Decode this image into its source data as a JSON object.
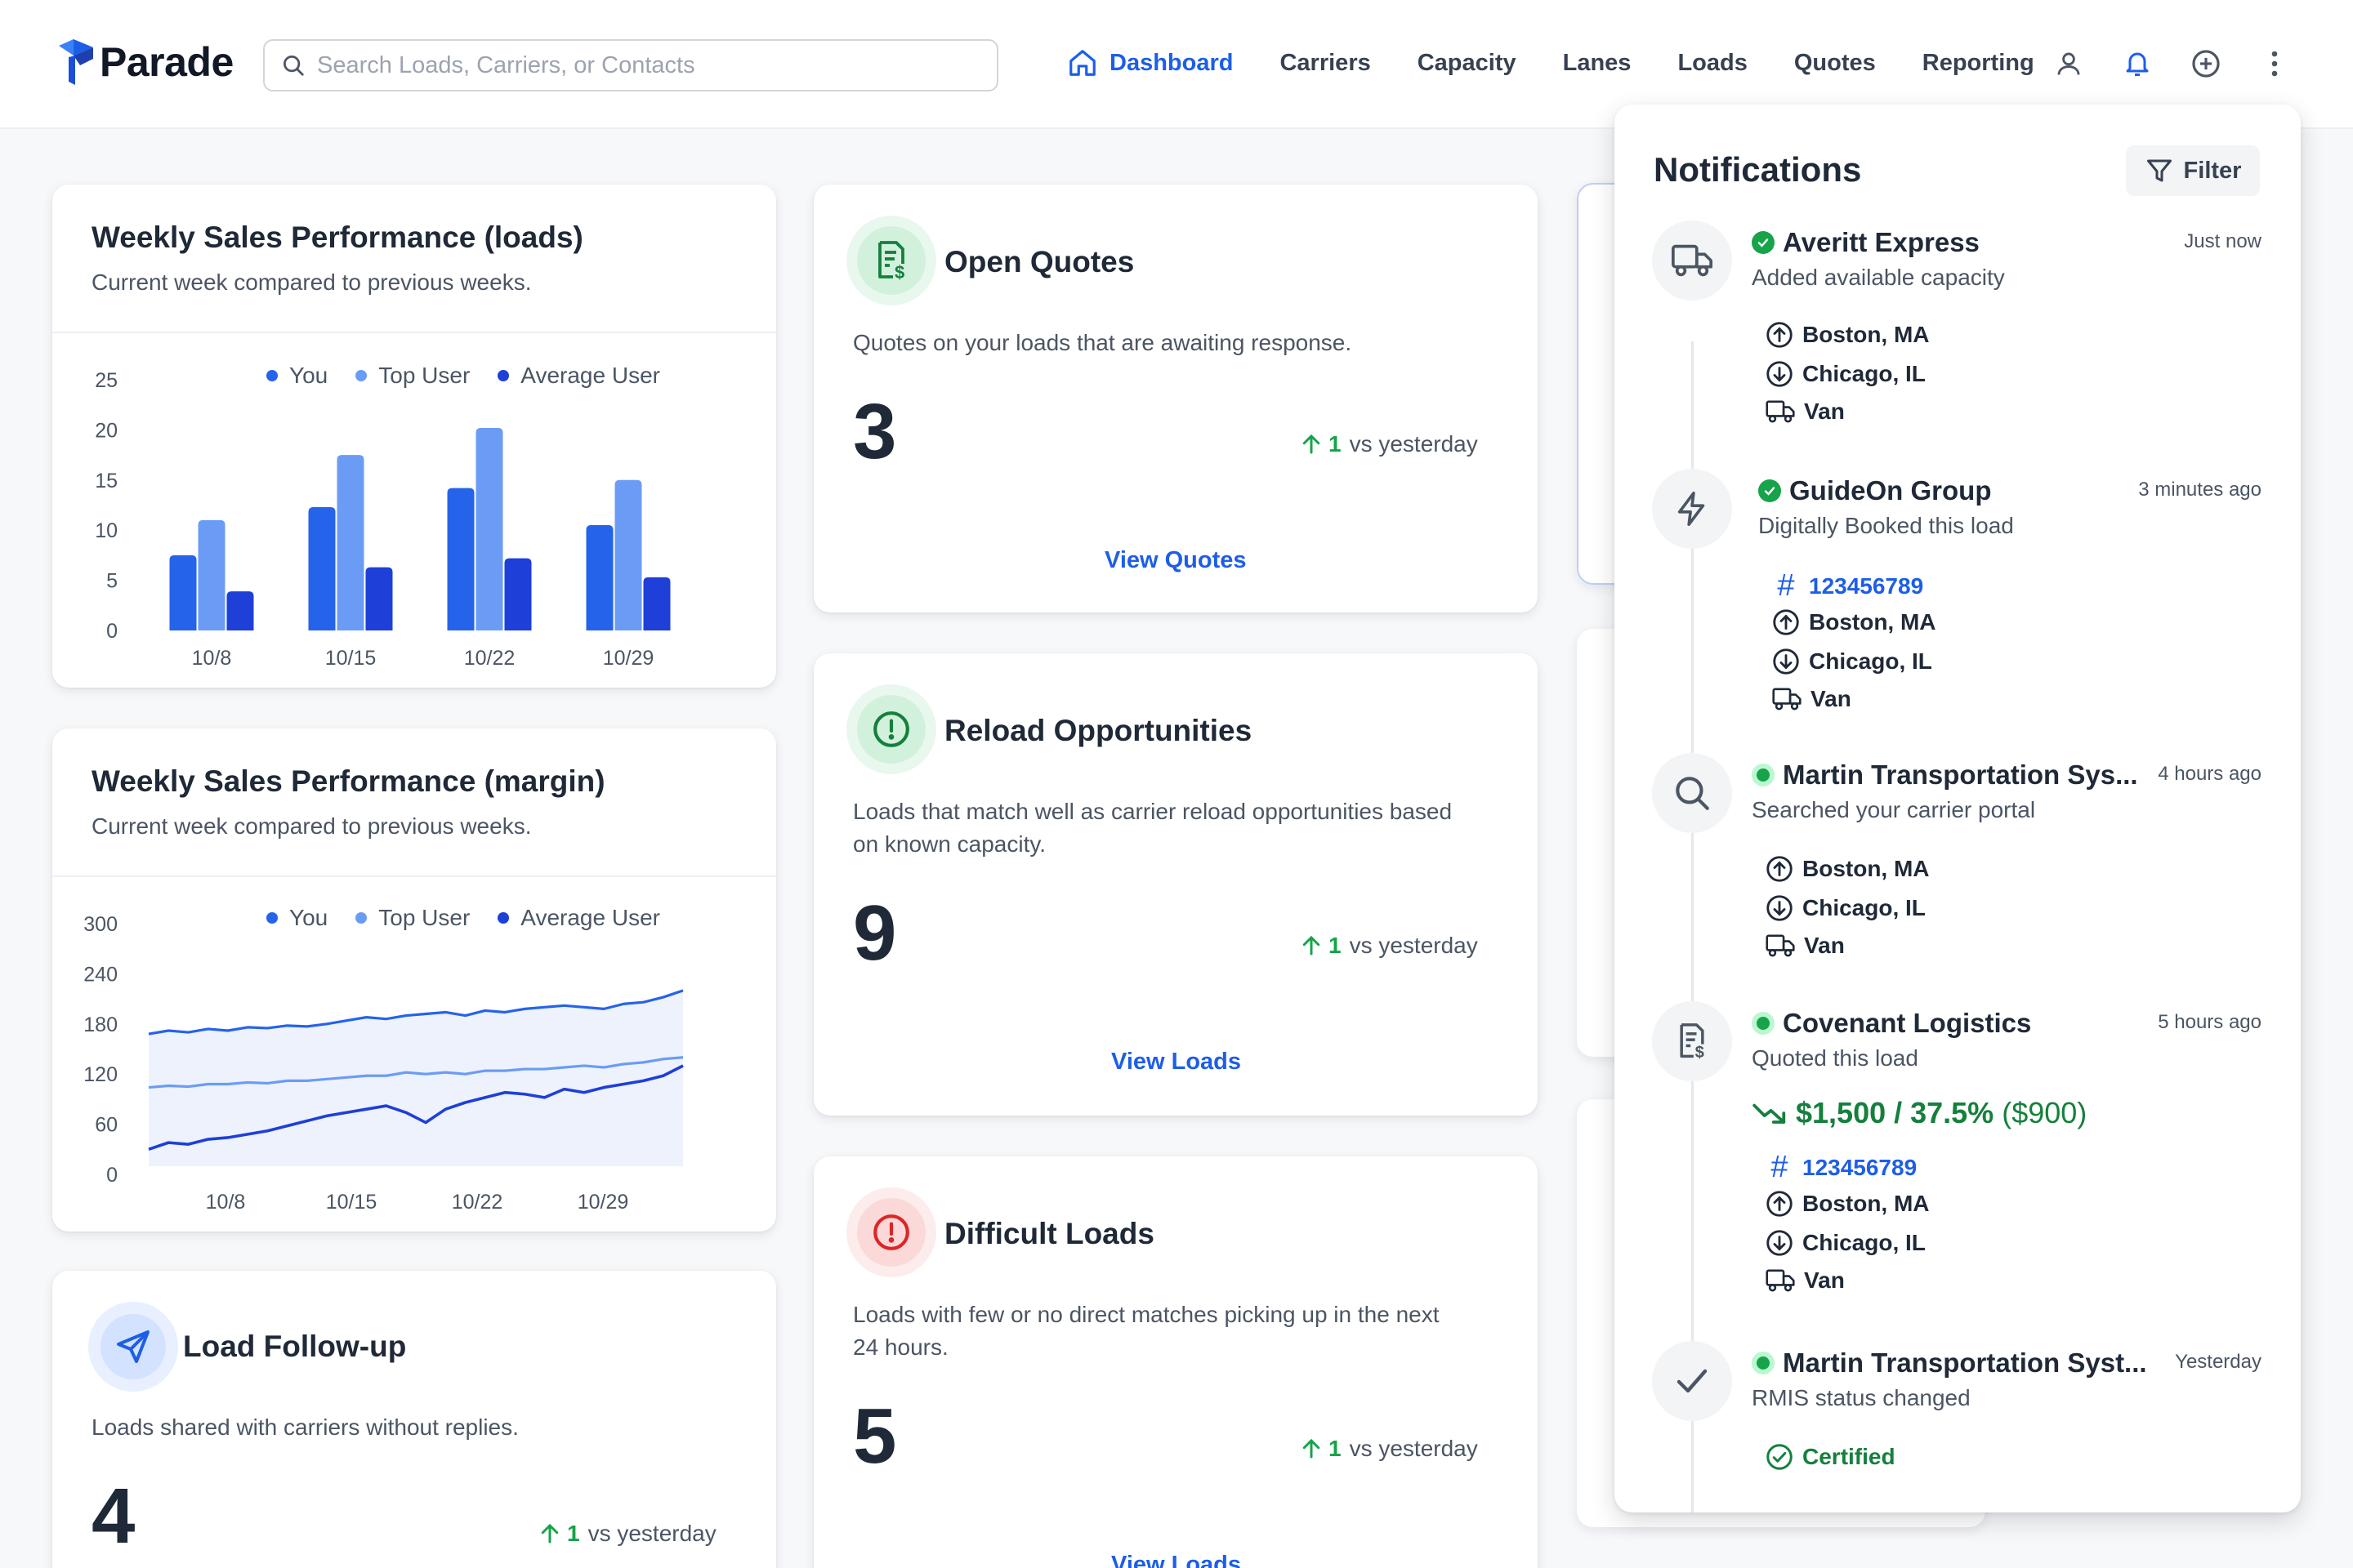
{
  "brand": {
    "name": "Parade"
  },
  "search": {
    "placeholder": "Search Loads, Carriers, or Contacts"
  },
  "nav": [
    {
      "label": "Dashboard",
      "active": true
    },
    {
      "label": "Carriers"
    },
    {
      "label": "Capacity"
    },
    {
      "label": "Lanes"
    },
    {
      "label": "Loads"
    },
    {
      "label": "Quotes"
    },
    {
      "label": "Reporting"
    }
  ],
  "header_icons": [
    "user-icon",
    "bell-icon",
    "plus-circle-icon",
    "more-vertical-icon"
  ],
  "colors": {
    "accent": "#1d5ee8",
    "you": "#2563eb",
    "top_user": "#6b9cf5",
    "average_user": "#1e3fd8",
    "up": "#15a34a"
  },
  "weekly_loads": {
    "title": "Weekly Sales Performance (loads)",
    "subtitle": "Current week compared to previous weeks."
  },
  "weekly_margin": {
    "title": "Weekly Sales Performance (margin)",
    "subtitle": "Current week compared to previous weeks."
  },
  "chart_data": [
    {
      "type": "bar",
      "title": "Weekly Sales Performance (loads)",
      "categories": [
        "10/8",
        "10/15",
        "10/22",
        "10/29"
      ],
      "series": [
        {
          "name": "You",
          "values": [
            7.5,
            12.3,
            14.2,
            10.5
          ]
        },
        {
          "name": "Top User",
          "values": [
            11,
            17.5,
            20.2,
            15
          ]
        },
        {
          "name": "Average User",
          "values": [
            3.9,
            6.3,
            7.2,
            5.3
          ]
        }
      ],
      "yticks": [
        0,
        5,
        10,
        15,
        20,
        25
      ],
      "ylim": [
        0,
        25
      ],
      "legend": "top-center",
      "grid": false
    },
    {
      "type": "line",
      "title": "Weekly Sales Performance (margin)",
      "xticks": [
        "10/8",
        "10/15",
        "10/22",
        "10/29"
      ],
      "x": [
        0,
        1,
        2,
        3,
        4,
        5,
        6,
        7,
        8,
        9,
        10,
        11,
        12,
        13,
        14,
        15,
        16,
        17,
        18,
        19,
        20,
        21,
        22,
        23,
        24,
        25,
        26,
        27
      ],
      "series": [
        {
          "name": "Top User",
          "values": [
            168,
            172,
            170,
            174,
            172,
            176,
            175,
            178,
            177,
            180,
            184,
            188,
            186,
            190,
            192,
            194,
            190,
            196,
            194,
            198,
            200,
            202,
            200,
            198,
            204,
            206,
            212,
            220
          ]
        },
        {
          "name": "You",
          "values": [
            104,
            106,
            105,
            108,
            108,
            110,
            109,
            112,
            112,
            114,
            116,
            118,
            118,
            122,
            120,
            122,
            120,
            124,
            124,
            126,
            126,
            128,
            130,
            128,
            132,
            134,
            138,
            140
          ]
        },
        {
          "name": "Average User",
          "values": [
            30,
            38,
            36,
            42,
            44,
            48,
            52,
            58,
            64,
            70,
            74,
            78,
            82,
            74,
            62,
            78,
            86,
            92,
            98,
            96,
            92,
            102,
            98,
            104,
            108,
            112,
            118,
            130
          ]
        }
      ],
      "yticks": [
        0,
        60,
        120,
        180,
        240,
        300
      ],
      "ylim": [
        0,
        300
      ],
      "legend": "top-center",
      "grid": false
    }
  ],
  "legend": {
    "you": "You",
    "top_user": "Top User",
    "average_user": "Average User"
  },
  "open_quotes": {
    "title": "Open Quotes",
    "description": "Quotes on your loads that are awaiting response.",
    "value": "3",
    "delta": "1",
    "delta_label": "vs yesterday",
    "link": "View Quotes"
  },
  "reload": {
    "title": "Reload Opportunities",
    "description_line1": "Loads that match well as carrier reload opportunities based",
    "description_line2": "on known capacity.",
    "value": "9",
    "delta": "1",
    "delta_label": "vs yesterday",
    "link": "View Loads"
  },
  "difficult": {
    "title": "Difficult Loads",
    "description_line1": "Loads with few or no direct matches picking up in the next",
    "description_line2": "24 hours.",
    "value": "5",
    "delta": "1",
    "delta_label": "vs yesterday",
    "link": "View Loads"
  },
  "followup": {
    "title": "Load Follow-up",
    "description": "Loads shared with carriers without replies.",
    "value": "4",
    "delta": "1",
    "delta_label": "vs yesterday"
  },
  "notifications": {
    "title": "Notifications",
    "filter_label": "Filter",
    "items": [
      {
        "icon": "truck-icon",
        "name": "Averitt Express",
        "time": "Just now",
        "desc": "Added available capacity",
        "origin": "Boston, MA",
        "destination": "Chicago, IL",
        "equipment": "Van"
      },
      {
        "icon": "lightning-icon",
        "name": "GuideOn Group",
        "time": "3 minutes ago",
        "desc": "Digitally Booked this load",
        "load_id": "123456789",
        "origin": "Boston, MA",
        "destination": "Chicago, IL",
        "equipment": "Van"
      },
      {
        "icon": "search-icon",
        "name": "Martin Transportation Sys...",
        "time": "4 hours ago",
        "desc": "Searched your carrier portal",
        "origin": "Boston, MA",
        "destination": "Chicago, IL",
        "equipment": "Van"
      },
      {
        "icon": "quote-icon",
        "name": "Covenant Logistics",
        "time": "5 hours ago",
        "desc": "Quoted this load",
        "price": "$1,500 / 37.5%",
        "price_margin": "($900)",
        "load_id": "123456789",
        "origin": "Boston, MA",
        "destination": "Chicago, IL",
        "equipment": "Van"
      },
      {
        "icon": "check-icon",
        "name": "Martin Transportation Syst...",
        "time": "Yesterday",
        "desc": "RMIS status changed",
        "status": "Certified"
      }
    ]
  }
}
